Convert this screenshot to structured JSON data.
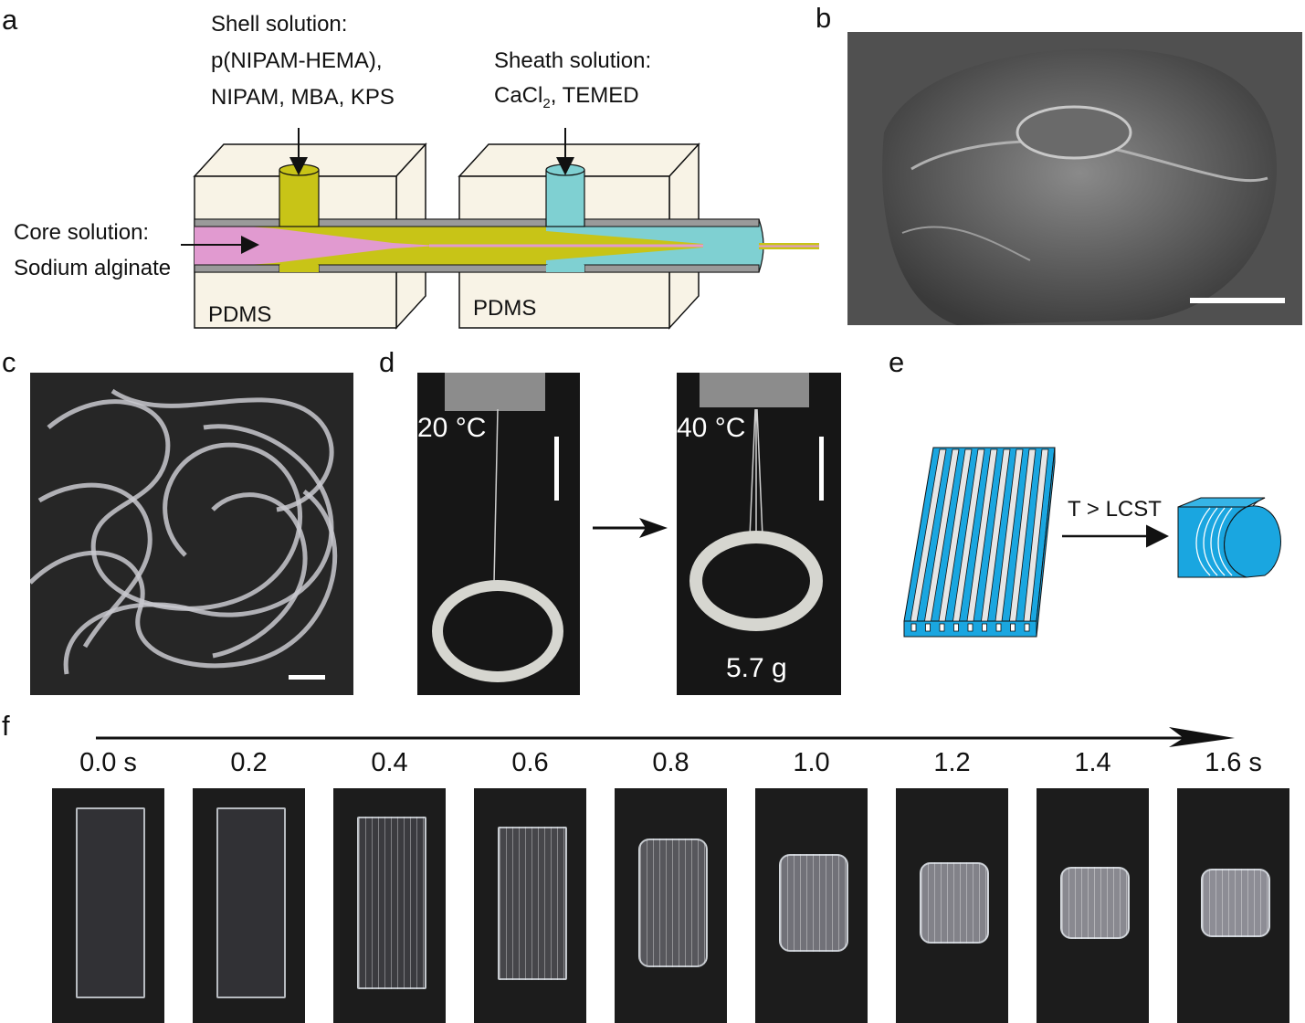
{
  "panels": {
    "a": {
      "label": "a",
      "shell_title": "Shell solution:",
      "shell_line1": "p(NIPAM-HEMA),",
      "shell_line2": "NIPAM, MBA, KPS",
      "sheath_title": "Sheath solution:",
      "sheath_line_pre": "CaCl",
      "sheath_sub": "2",
      "sheath_line_post": ", TEMED",
      "core_title": "Core solution:",
      "core_line": "Sodium alginate",
      "pdms_left": "PDMS",
      "pdms_right": "PDMS"
    },
    "b": {
      "label": "b"
    },
    "c": {
      "label": "c"
    },
    "d": {
      "label": "d",
      "temp_left": "20 °C",
      "temp_right": "40 °C",
      "mass": "5.7 g"
    },
    "e": {
      "label": "e",
      "arrow_text": "T > LCST"
    },
    "f": {
      "label": "f",
      "times": [
        "0.0 s",
        "0.2",
        "0.4",
        "0.6",
        "0.8",
        "1.0",
        "1.2",
        "1.4",
        "1.6 s"
      ],
      "shrink": [
        1.0,
        1.0,
        0.9,
        0.8,
        0.67,
        0.5,
        0.41,
        0.37,
        0.35
      ]
    }
  },
  "colors": {
    "pdms_block": "#f8f3e6",
    "core": "#e19ad0",
    "shell": "#c8c417",
    "sheath": "#7fd0d2",
    "film": "#1aa6e0",
    "tube_wall": "#9a9a9a"
  }
}
